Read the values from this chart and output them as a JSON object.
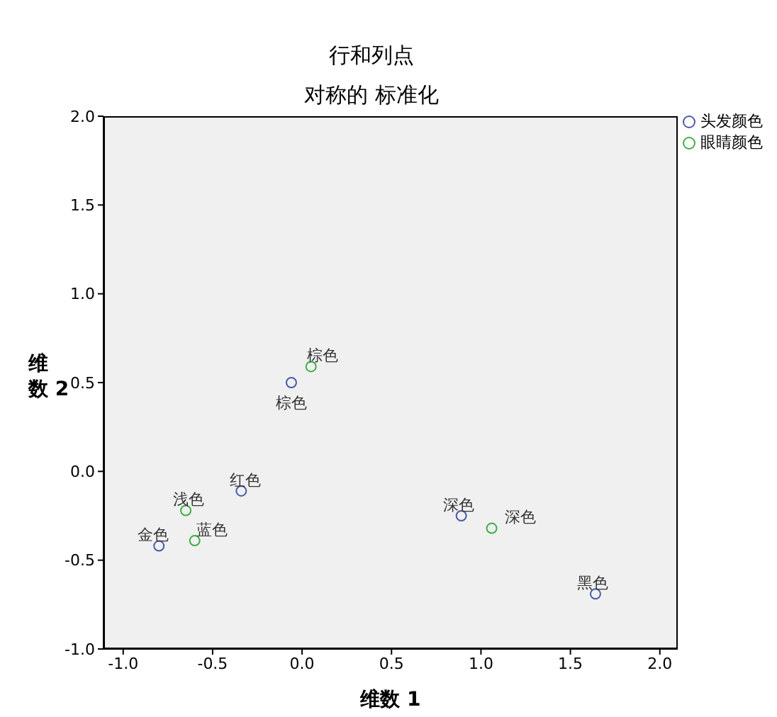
{
  "chart_data": {
    "type": "scatter",
    "title": "行和列点",
    "subtitle": "对称的 标准化",
    "xlabel": "维数 1",
    "ylabel": "维数 2",
    "xlim": [
      -1.11,
      2.1
    ],
    "ylim": [
      -1,
      2
    ],
    "xticks": [
      {
        "value": -1,
        "label": "-1.0"
      },
      {
        "value": -0.5,
        "label": "-0.5"
      },
      {
        "value": 0,
        "label": "0.0"
      },
      {
        "value": 0.5,
        "label": "0.5"
      },
      {
        "value": 1,
        "label": "1.0"
      },
      {
        "value": 1.5,
        "label": "1.5"
      },
      {
        "value": 2,
        "label": "2.0"
      }
    ],
    "yticks": [
      {
        "value": -1,
        "label": "-1.0"
      },
      {
        "value": -0.5,
        "label": "-0.5"
      },
      {
        "value": 0,
        "label": "0.0"
      },
      {
        "value": 0.5,
        "label": "0.5"
      },
      {
        "value": 1,
        "label": "1.0"
      },
      {
        "value": 1.5,
        "label": "1.5"
      },
      {
        "value": 2,
        "label": "2.0"
      }
    ],
    "series": [
      {
        "name": "头发颜色",
        "color": "#4a5aa8",
        "x": [
          -0.06,
          -0.34,
          -0.8,
          0.89,
          1.64
        ],
        "values": [
          0.5,
          -0.11,
          -0.42,
          -0.25,
          -0.69
        ]
      },
      {
        "name": "眼睛颜色",
        "color": "#3fae45",
        "x": [
          0.05,
          -0.65,
          -0.6,
          1.06
        ],
        "values": [
          0.59,
          -0.22,
          -0.39,
          -0.32
        ]
      }
    ],
    "annotations": [
      {
        "text": "棕色",
        "x": -0.06,
        "y": 0.5
      },
      {
        "text": "红色",
        "x": -0.34,
        "y": -0.11
      },
      {
        "text": "金色",
        "x": -0.8,
        "y": -0.42
      },
      {
        "text": "深色",
        "x": 0.89,
        "y": -0.25
      },
      {
        "text": "黑色",
        "x": 1.64,
        "y": -0.69
      },
      {
        "text": "棕色",
        "x": 0.05,
        "y": 0.59
      },
      {
        "text": "浅色",
        "x": -0.65,
        "y": -0.22
      },
      {
        "text": "蓝色",
        "x": -0.6,
        "y": -0.39
      },
      {
        "text": "深色",
        "x": 1.06,
        "y": -0.32
      }
    ],
    "marker": "circle",
    "legend": "top right"
  }
}
